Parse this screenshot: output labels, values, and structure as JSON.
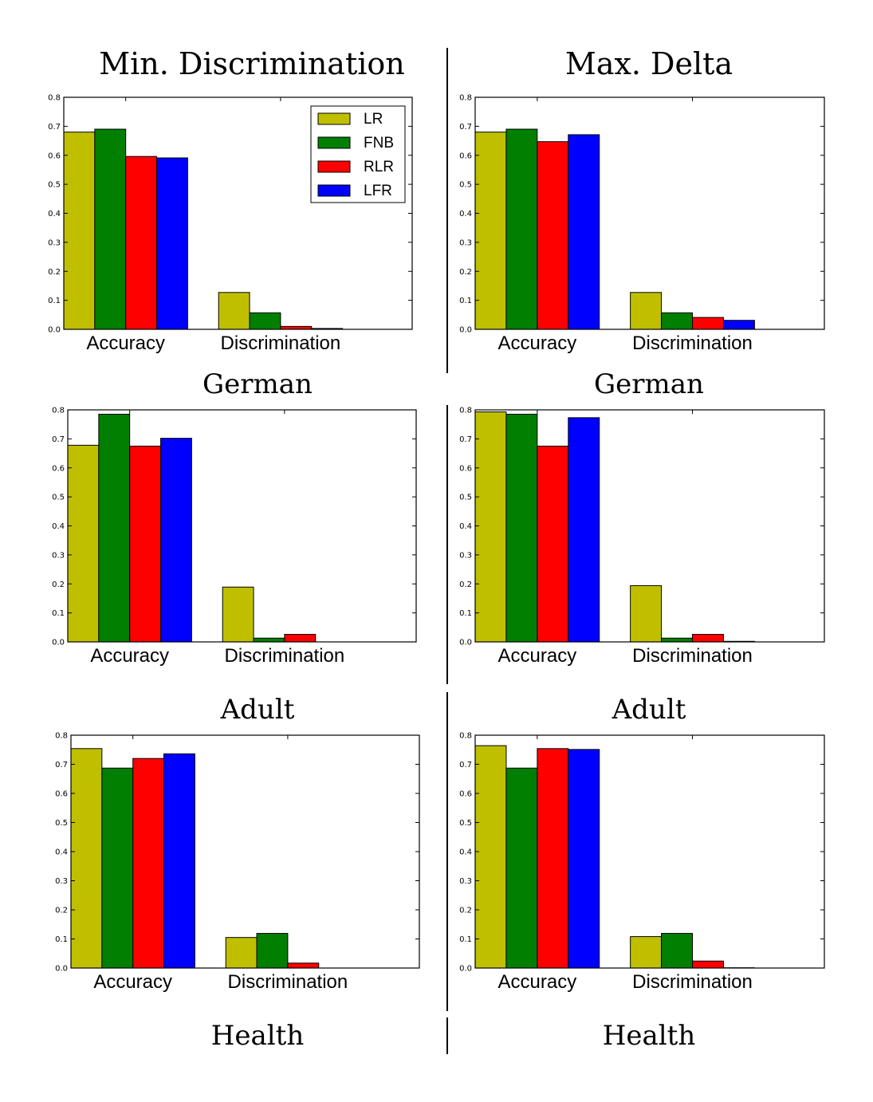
{
  "columns": [
    "Min. Discrimination",
    "Max. Delta"
  ],
  "datasets": [
    "German",
    "Adult",
    "Health"
  ],
  "colors": {
    "LR": "#bfbf00",
    "FNB": "#007f00",
    "RLR": "#ff0000",
    "LFR": "#0000ff"
  },
  "chart_data": [
    {
      "type": "bar",
      "column": "Min. Discrimination",
      "dataset": "German",
      "categories": [
        "Accuracy",
        "Discrimination"
      ],
      "ylim": [
        0,
        0.8
      ],
      "yticks": [
        "0.0",
        "0.1",
        "0.2",
        "0.3",
        "0.4",
        "0.5",
        "0.6",
        "0.7",
        "0.8"
      ],
      "legend": true,
      "legend_position": "top-right",
      "series": [
        {
          "name": "LR",
          "values": [
            0.68,
            0.127
          ]
        },
        {
          "name": "FNB",
          "values": [
            0.69,
            0.057
          ]
        },
        {
          "name": "RLR",
          "values": [
            0.596,
            0.01
          ]
        },
        {
          "name": "LFR",
          "values": [
            0.591,
            0.003
          ]
        }
      ]
    },
    {
      "type": "bar",
      "column": "Max. Delta",
      "dataset": "German",
      "categories": [
        "Accuracy",
        "Discrimination"
      ],
      "ylim": [
        0,
        0.8
      ],
      "yticks": [
        "0.0",
        "0.1",
        "0.2",
        "0.3",
        "0.4",
        "0.5",
        "0.6",
        "0.7",
        "0.8"
      ],
      "legend": false,
      "series": [
        {
          "name": "LR",
          "values": [
            0.68,
            0.127
          ]
        },
        {
          "name": "FNB",
          "values": [
            0.69,
            0.057
          ]
        },
        {
          "name": "RLR",
          "values": [
            0.647,
            0.041
          ]
        },
        {
          "name": "LFR",
          "values": [
            0.671,
            0.031
          ]
        }
      ]
    },
    {
      "type": "bar",
      "column": "Min. Discrimination",
      "dataset": "Adult",
      "categories": [
        "Accuracy",
        "Discrimination"
      ],
      "ylim": [
        0,
        0.8
      ],
      "yticks": [
        "0.0",
        "0.1",
        "0.2",
        "0.3",
        "0.4",
        "0.5",
        "0.6",
        "0.7",
        "0.8"
      ],
      "legend": false,
      "series": [
        {
          "name": "LR",
          "values": [
            0.678,
            0.189
          ]
        },
        {
          "name": "FNB",
          "values": [
            0.785,
            0.013
          ]
        },
        {
          "name": "RLR",
          "values": [
            0.675,
            0.026
          ]
        },
        {
          "name": "LFR",
          "values": [
            0.702,
            0.0
          ]
        }
      ]
    },
    {
      "type": "bar",
      "column": "Max. Delta",
      "dataset": "Adult",
      "categories": [
        "Accuracy",
        "Discrimination"
      ],
      "ylim": [
        0,
        0.8
      ],
      "yticks": [
        "0.0",
        "0.1",
        "0.2",
        "0.3",
        "0.4",
        "0.5",
        "0.6",
        "0.7",
        "0.8"
      ],
      "legend": false,
      "series": [
        {
          "name": "LR",
          "values": [
            0.793,
            0.194
          ]
        },
        {
          "name": "FNB",
          "values": [
            0.785,
            0.013
          ]
        },
        {
          "name": "RLR",
          "values": [
            0.675,
            0.026
          ]
        },
        {
          "name": "LFR",
          "values": [
            0.773,
            0.002
          ]
        }
      ]
    },
    {
      "type": "bar",
      "column": "Min. Discrimination",
      "dataset": "Health",
      "categories": [
        "Accuracy",
        "Discrimination"
      ],
      "ylim": [
        0,
        0.8
      ],
      "yticks": [
        "0.0",
        "0.1",
        "0.2",
        "0.3",
        "0.4",
        "0.5",
        "0.6",
        "0.7",
        "0.8"
      ],
      "legend": false,
      "series": [
        {
          "name": "LR",
          "values": [
            0.754,
            0.105
          ]
        },
        {
          "name": "FNB",
          "values": [
            0.687,
            0.119
          ]
        },
        {
          "name": "RLR",
          "values": [
            0.72,
            0.017
          ]
        },
        {
          "name": "LFR",
          "values": [
            0.736,
            0.0
          ]
        }
      ]
    },
    {
      "type": "bar",
      "column": "Max. Delta",
      "dataset": "Health",
      "categories": [
        "Accuracy",
        "Discrimination"
      ],
      "ylim": [
        0,
        0.8
      ],
      "yticks": [
        "0.0",
        "0.1",
        "0.2",
        "0.3",
        "0.4",
        "0.5",
        "0.6",
        "0.7",
        "0.8"
      ],
      "legend": false,
      "series": [
        {
          "name": "LR",
          "values": [
            0.764,
            0.108
          ]
        },
        {
          "name": "FNB",
          "values": [
            0.687,
            0.119
          ]
        },
        {
          "name": "RLR",
          "values": [
            0.754,
            0.024
          ]
        },
        {
          "name": "LFR",
          "values": [
            0.751,
            0.001
          ]
        }
      ]
    }
  ]
}
